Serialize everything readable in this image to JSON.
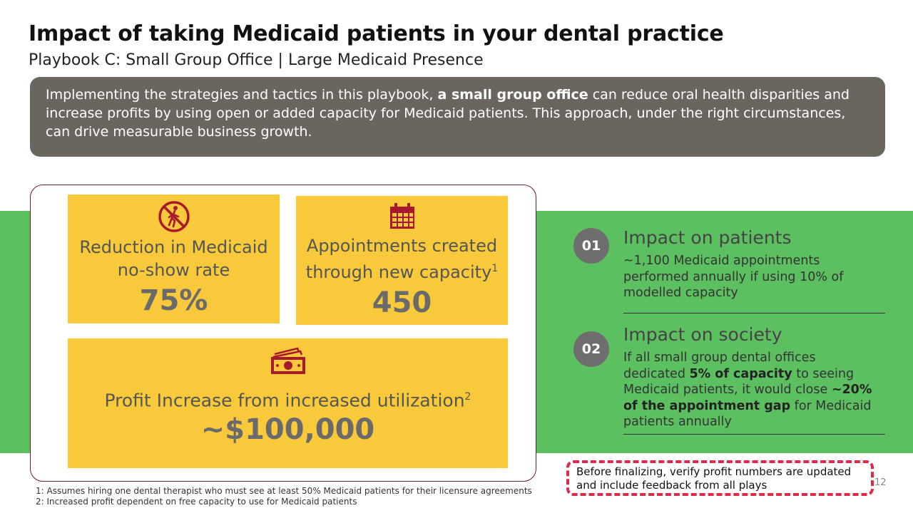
{
  "header": {
    "title": "Impact of taking Medicaid patients in your dental practice",
    "subtitle": "Playbook C: Small Group Office | Large Medicaid Presence"
  },
  "intro": {
    "part1": "Implementing the strategies and tactics in this playbook, ",
    "bold": "a small group office",
    "part2": " can reduce oral health disparities and increase profits by using open or added capacity for Medicaid patients. This approach, under the right circumstances, can drive measurable business growth."
  },
  "tiles": {
    "noshow": {
      "label_line1": "Reduction in Medicaid",
      "label_line2": "no-show rate",
      "value": "75%",
      "icon": "no-walking-icon"
    },
    "appointments": {
      "label_line1": "Appointments created",
      "label_line2": "through new capacity",
      "sup": "1",
      "value": "450",
      "icon": "calendar-icon"
    },
    "profit": {
      "label": "Profit Increase from increased utilization",
      "sup": "2",
      "value": "~$100,000",
      "icon": "money-icon"
    }
  },
  "impacts": {
    "patients": {
      "number": "01",
      "title": "Impact on patients",
      "text": "~1,100 Medicaid appointments performed annually if using 10% of modelled capacity"
    },
    "society": {
      "number": "02",
      "title": "Impact on society",
      "t1": "If all small group dental offices dedicated ",
      "b1": "5% of capacity",
      "t2": " to seeing Medicaid patients, it would close ",
      "b2": "~20% of the appointment gap",
      "t3": " for Medicaid patients annually"
    }
  },
  "note": "Before finalizing, verify profit numbers are updated and include feedback from all plays",
  "page_number": "12",
  "footnotes": [
    "1: Assumes hiring one dental therapist  who must see at least 50% Medicaid patients for their licensure agreements",
    "2: Increased profit dependent on free capacity to use for Medicaid patients"
  ],
  "colors": {
    "accent_red": "#a8192d",
    "tile_yellow": "#f8c93a",
    "green": "#5cbf60",
    "intro_gray": "#6b6560"
  }
}
